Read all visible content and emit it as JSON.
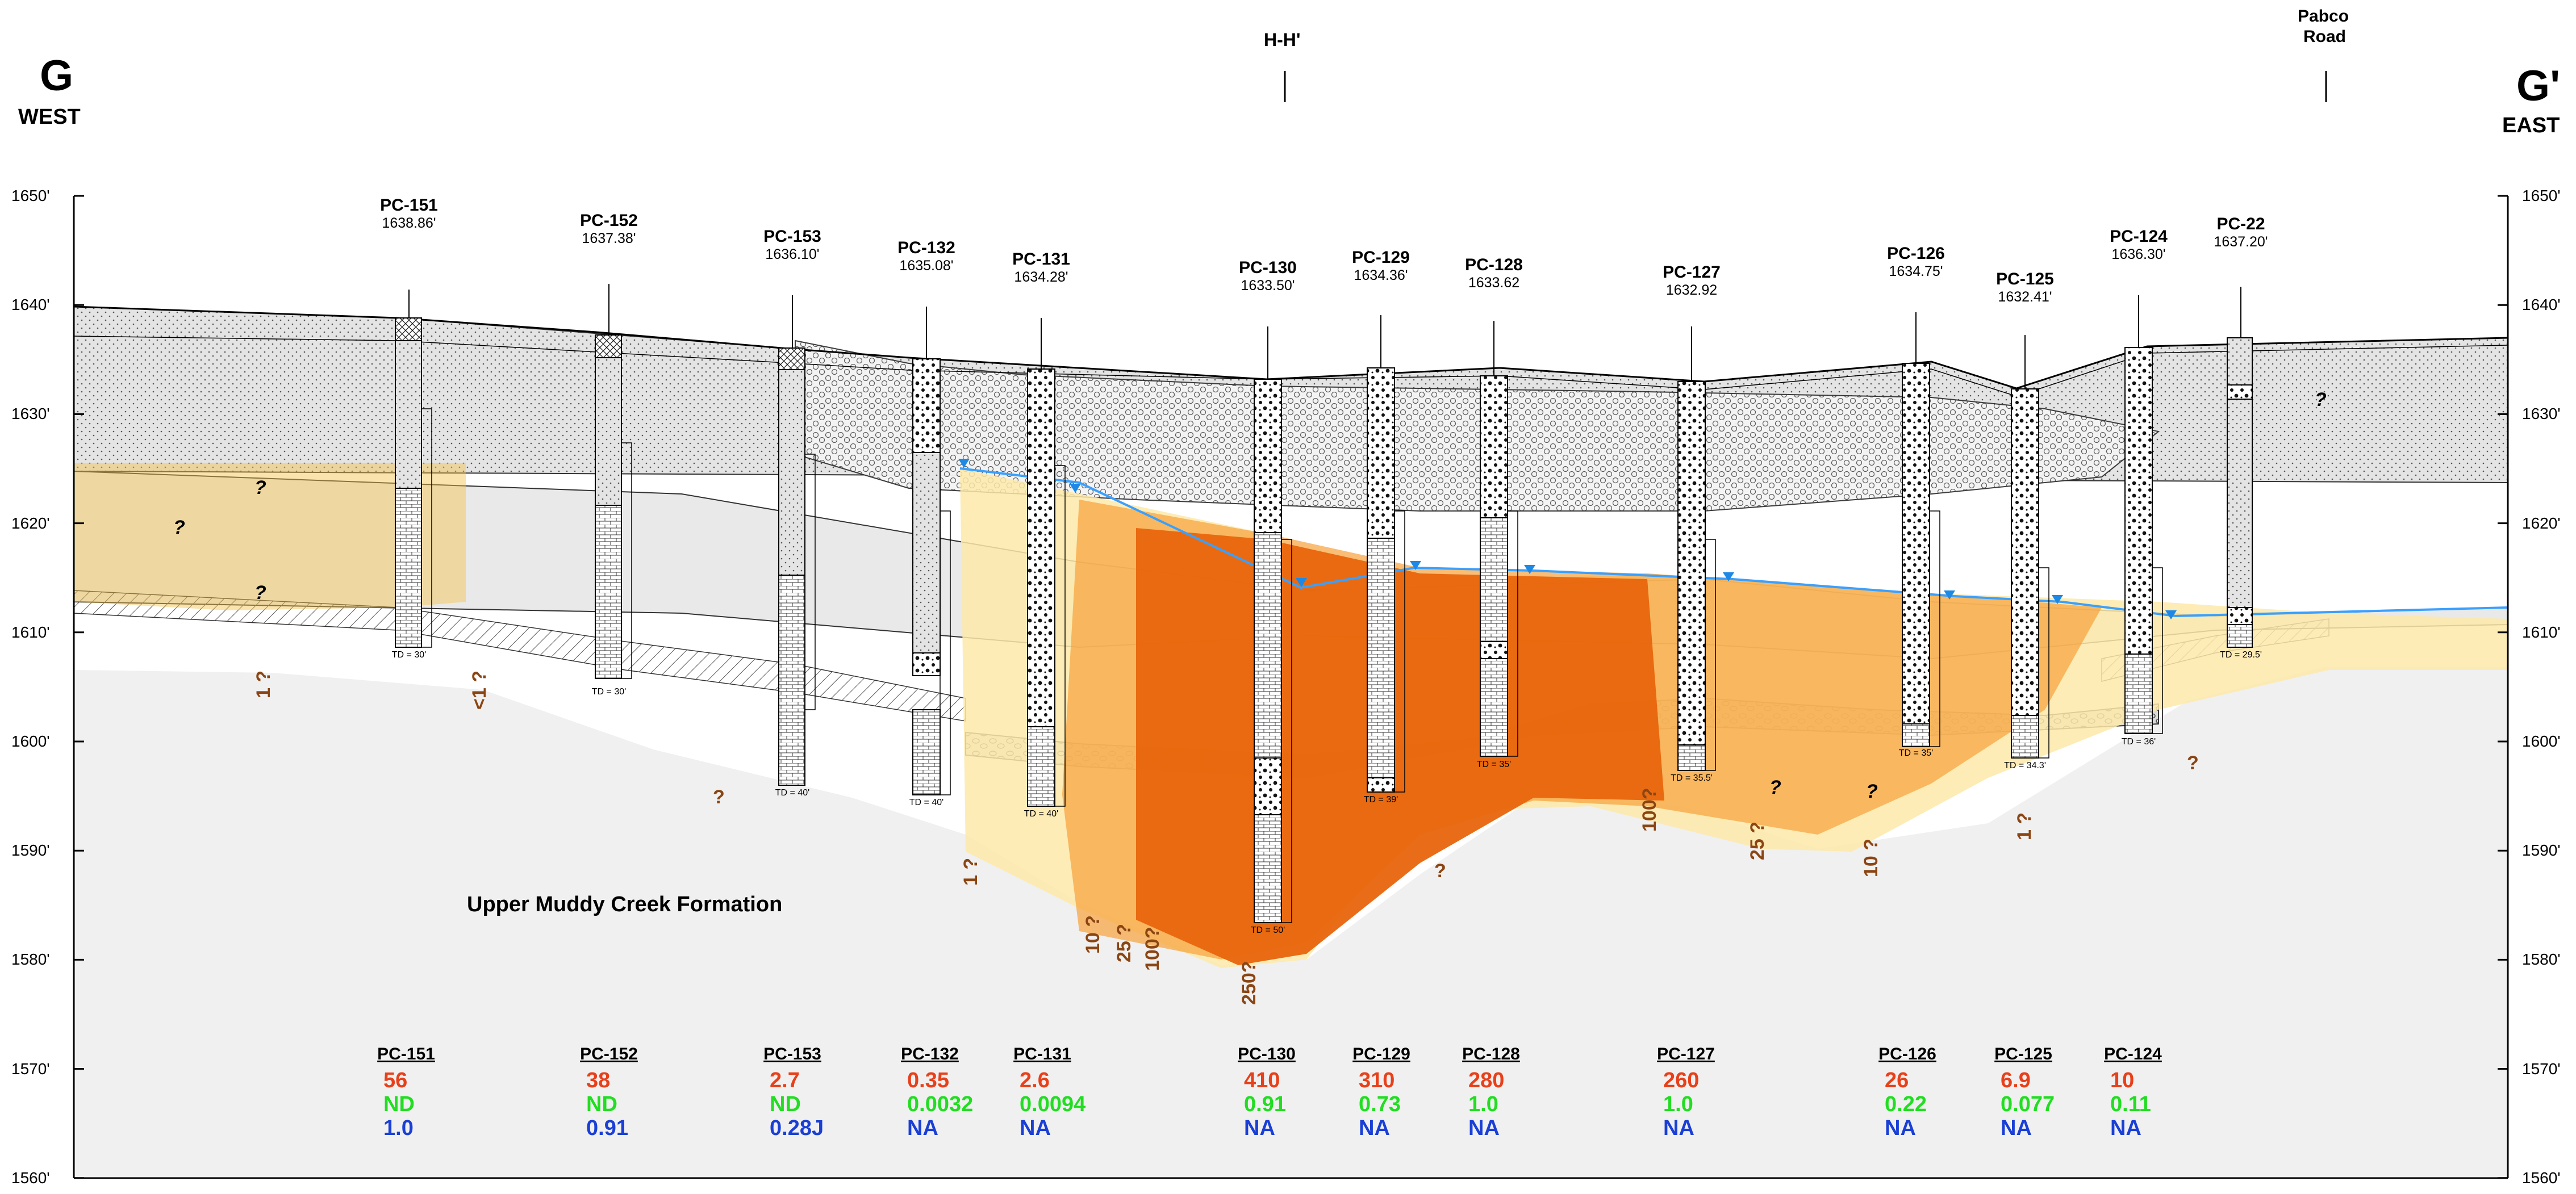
{
  "title": {
    "left_letter": "G",
    "left_dir": "WEST",
    "right_letter": "G'",
    "right_dir": "EAST",
    "crossing": "H-H'",
    "road_line1": "Pabco",
    "road_line2": "Road"
  },
  "formation_label": "Upper Muddy Creek Formation",
  "elevation_axis": {
    "labels": [
      "1650'",
      "1640'",
      "1630'",
      "1620'",
      "1610'",
      "1600'",
      "1590'",
      "1580'",
      "1570'",
      "1560'"
    ],
    "range": [
      1560,
      1650
    ]
  },
  "wells": [
    {
      "name": "PC-151",
      "elev": "1638.86'",
      "td": "TD = 30'"
    },
    {
      "name": "PC-152",
      "elev": "1637.38'",
      "td": "TD = 30'"
    },
    {
      "name": "PC-153",
      "elev": "1636.10'",
      "td": "TD = 40'"
    },
    {
      "name": "PC-132",
      "elev": "1635.08'",
      "td": "TD = 40'"
    },
    {
      "name": "PC-131",
      "elev": "1634.28'",
      "td": "TD = 40'"
    },
    {
      "name": "PC-130",
      "elev": "1633.50'",
      "td": "TD = 50'"
    },
    {
      "name": "PC-129",
      "elev": "1634.36'",
      "td": "TD = 39'"
    },
    {
      "name": "PC-128",
      "elev": "1633.62",
      "td": "TD = 35'"
    },
    {
      "name": "PC-127",
      "elev": "1632.92",
      "td": "TD = 35.5'"
    },
    {
      "name": "PC-126",
      "elev": "1634.75'",
      "td": "TD = 35'"
    },
    {
      "name": "PC-125",
      "elev": "1632.41'",
      "td": "TD = 34.3'"
    },
    {
      "name": "PC-124",
      "elev": "1636.30'",
      "td": "TD = 36'"
    },
    {
      "name": "PC-22",
      "elev": "1637.20'",
      "td": "TD = 29.5'"
    }
  ],
  "contours": [
    {
      "label": "1 ?"
    },
    {
      "label": "<1 ?"
    },
    {
      "label": "?"
    },
    {
      "label": "1 ?"
    },
    {
      "label": "10 ?"
    },
    {
      "label": "25 ?"
    },
    {
      "label": "100?"
    },
    {
      "label": "250?"
    },
    {
      "label": "?"
    },
    {
      "label": "100?"
    },
    {
      "label": "25 ?"
    },
    {
      "label": "10 ?"
    },
    {
      "label": "1 ?"
    },
    {
      "label": "?"
    }
  ],
  "query_marks": [
    "?",
    "?",
    "?",
    "?",
    "?",
    "?"
  ],
  "results": [
    {
      "name": "PC-151",
      "red": "56",
      "green": "ND",
      "blue": "1.0"
    },
    {
      "name": "PC-152",
      "red": "38",
      "green": "ND",
      "blue": "0.91"
    },
    {
      "name": "PC-153",
      "red": "2.7",
      "green": "ND",
      "blue": "0.28J"
    },
    {
      "name": "PC-132",
      "red": "0.35",
      "green": "0.0032",
      "blue": "NA"
    },
    {
      "name": "PC-131",
      "red": "2.6",
      "green": "0.0094",
      "blue": "NA"
    },
    {
      "name": "PC-130",
      "red": "410",
      "green": "0.91",
      "blue": "NA"
    },
    {
      "name": "PC-129",
      "red": "310",
      "green": "0.73",
      "blue": "NA"
    },
    {
      "name": "PC-128",
      "red": "280",
      "green": "1.0",
      "blue": "NA"
    },
    {
      "name": "PC-127",
      "red": "260",
      "green": "1.0",
      "blue": "NA"
    },
    {
      "name": "PC-126",
      "red": "26",
      "green": "0.22",
      "blue": "NA"
    },
    {
      "name": "PC-125",
      "red": "6.9",
      "green": "0.077",
      "blue": "NA"
    },
    {
      "name": "PC-124",
      "red": "10",
      "green": "0.11",
      "blue": "NA"
    }
  ],
  "colors": {
    "red_value": "#e8401a",
    "green_value": "#22dd22",
    "blue_value": "#1a3fd6",
    "plume_high": "#e8650c",
    "plume_mid": "#f6a13a",
    "plume_low": "#fde9a8",
    "water_table": "#3aa0ff",
    "formation_fill": "#f0f0f0"
  }
}
